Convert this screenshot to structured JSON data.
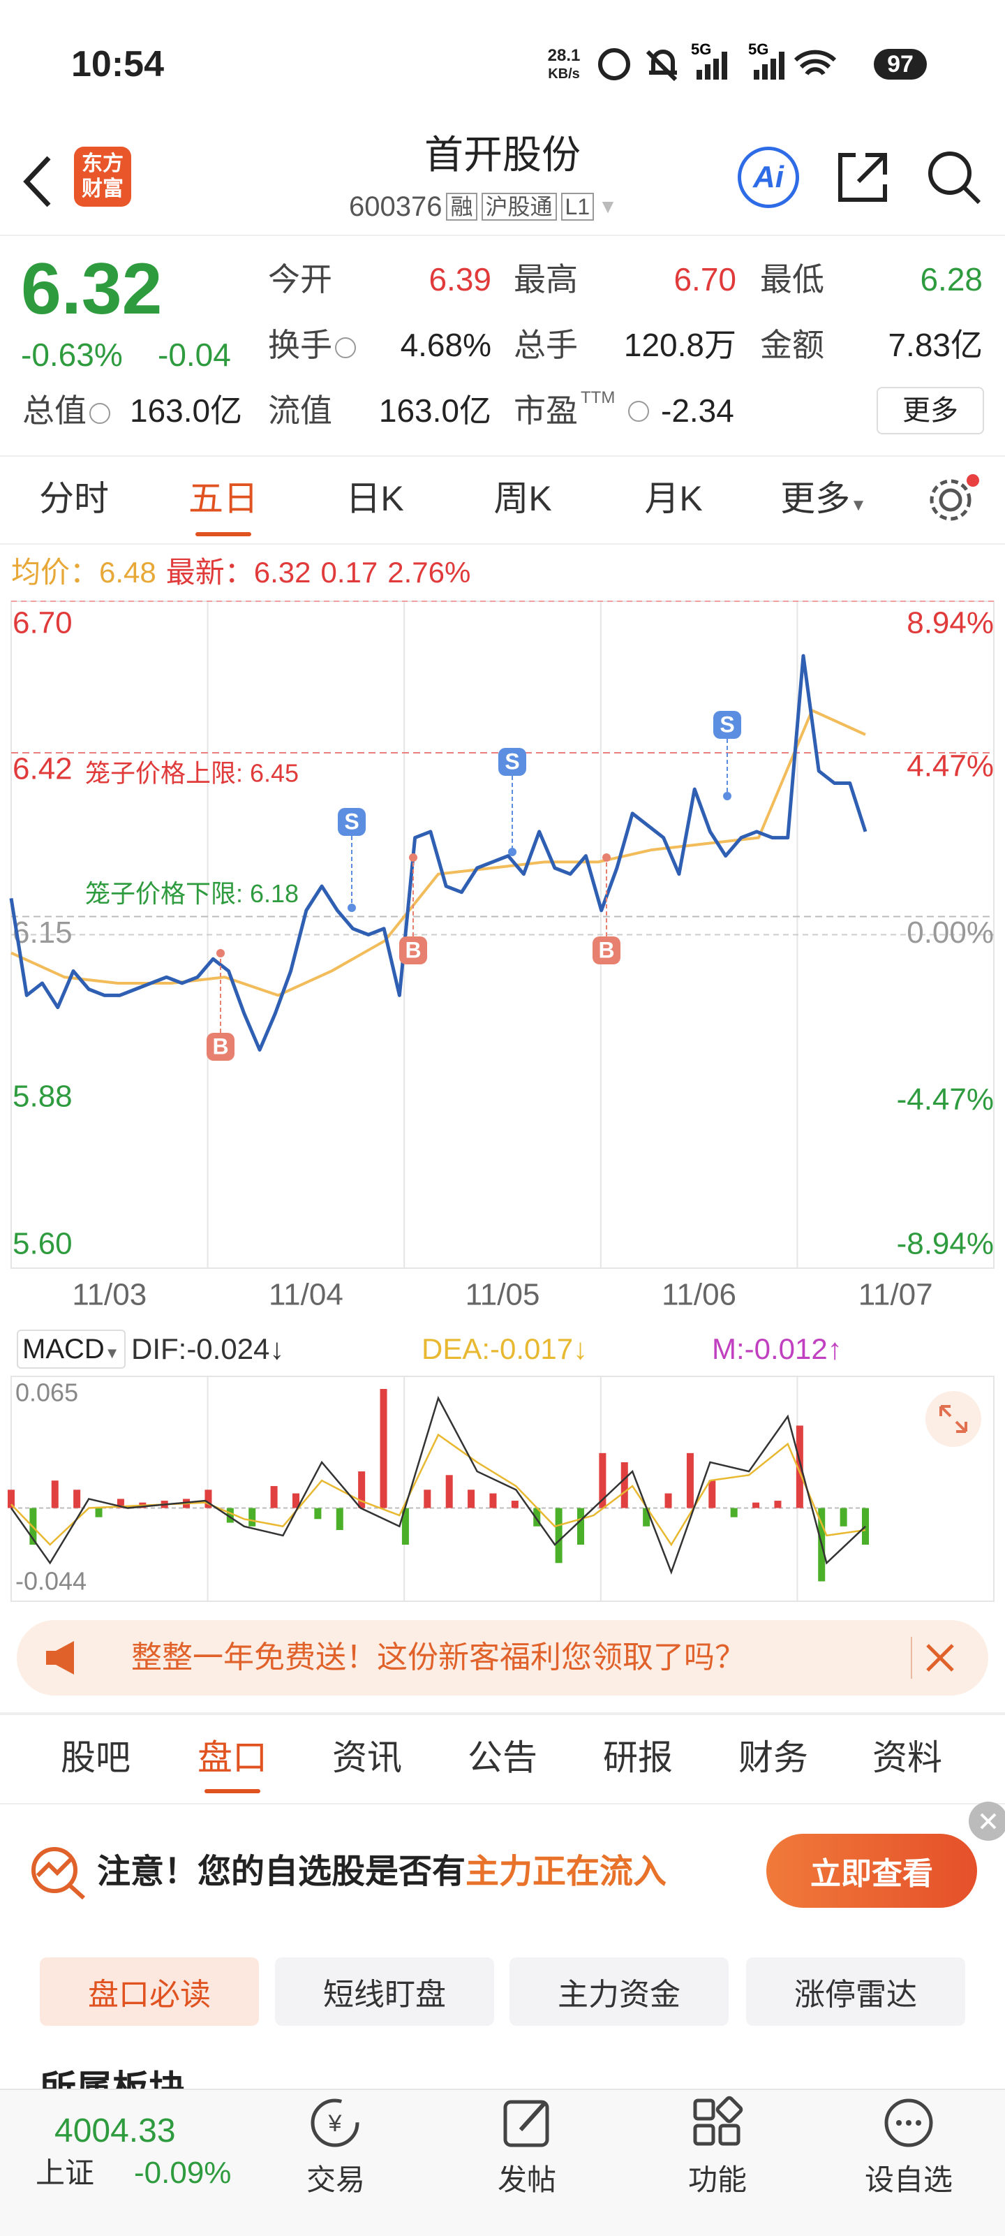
{
  "status": {
    "time": "10:54",
    "speed": "28.1",
    "speed_unit": "KB/s",
    "battery": "97"
  },
  "header": {
    "logo": [
      "东方",
      "财富"
    ],
    "title": "首开股份",
    "code": "600376",
    "tags": [
      "融",
      "沪股通",
      "L1"
    ],
    "ai": "Ai"
  },
  "quote": {
    "price": "6.32",
    "change_pct": "-0.63%",
    "change": "-0.04",
    "fields": [
      {
        "label": "今开",
        "value": "6.39"
      },
      {
        "label": "最高",
        "value": "6.70"
      },
      {
        "label": "最低",
        "value": "6.28"
      },
      {
        "label": "换手",
        "value": "4.68%"
      },
      {
        "label": "总手",
        "value": "120.8万"
      },
      {
        "label": "金额",
        "value": "7.83亿"
      },
      {
        "label": "总值",
        "value": "163.0亿"
      },
      {
        "label": "流值",
        "value": "163.0亿"
      },
      {
        "label": "市盈",
        "value": "-2.34"
      }
    ],
    "ttm": "TTM",
    "more": "更多"
  },
  "tabs": [
    "分时",
    "五日",
    "日K",
    "周K",
    "月K",
    "更多"
  ],
  "chart": {
    "legend": {
      "avg_label": "均价：",
      "avg": "6.48",
      "last_label": "最新：",
      "last": "6.32",
      "change": "0.17",
      "change_pct": "2.76%"
    },
    "ylim": [
      5.6,
      6.7
    ],
    "yticks": [
      {
        "value": 6.7,
        "label": "6.70"
      },
      6.42,
      6.15,
      5.88,
      {
        "value": 5.6,
        "label": "5.60"
      }
    ],
    "y2lim": [
      -8.94,
      8.94
    ],
    "y2ticks": [
      {
        "value": 8.94,
        "label": "8.94%"
      },
      {
        "value": 4.47,
        "label": "4.47%"
      },
      {
        "value": 0,
        "label": "0.00%"
      },
      {
        "value": -4.47,
        "label": "-4.47%"
      },
      {
        "value": -8.94,
        "label": "-8.94%"
      }
    ],
    "dates": [
      "11/03",
      "11/04",
      "11/05",
      "11/06",
      "11/07"
    ],
    "upper_label": "笼子价格上限: 6.45",
    "upper": 6.45,
    "lower_label": "笼子价格下限: 6.18",
    "lower": 6.18,
    "price": [
      6.21,
      6.05,
      6.07,
      6.03,
      6.09,
      6.06,
      6.05,
      6.05,
      6.06,
      6.07,
      6.08,
      6.07,
      6.08,
      6.11,
      6.09,
      6.02,
      5.96,
      6.02,
      6.09,
      6.19,
      6.23,
      6.19,
      6.16,
      6.15,
      6.16,
      6.05,
      6.31,
      6.32,
      6.23,
      6.22,
      6.26,
      6.27,
      6.28,
      6.25,
      6.32,
      6.26,
      6.25,
      6.28,
      6.19,
      6.26,
      6.35,
      6.33,
      6.31,
      6.25,
      6.39,
      6.32,
      6.28,
      6.31,
      6.32,
      6.31,
      6.31,
      6.61,
      6.42,
      6.4,
      6.4,
      6.32
    ],
    "avg": [
      6.12,
      6.08,
      6.07,
      6.07,
      6.08,
      6.05,
      6.09,
      6.14,
      6.25,
      6.26,
      6.27,
      6.27,
      6.29,
      6.3,
      6.31,
      6.52,
      6.48
    ],
    "markers": [
      "S",
      "S",
      "S",
      "B",
      "B",
      "B"
    ]
  },
  "macd": {
    "title": "MACD",
    "dif": "DIF:-0.024↓",
    "dea": "DEA:-0.017↓",
    "m": "M:-0.012↑",
    "ylim": [
      -0.044,
      0.065
    ],
    "yticks": [
      0.065,
      -0.044
    ],
    "hist": [
      0.01,
      -0.02,
      0.015,
      0.01,
      -0.005,
      0.005,
      0.003,
      0.004,
      0.005,
      0.01,
      -0.008,
      -0.01,
      0.012,
      0.008,
      -0.006,
      -0.012,
      0.02,
      0.065,
      -0.02,
      0.01,
      0.018,
      0.01,
      0.008,
      0.004,
      -0.01,
      -0.03,
      -0.02,
      0.03,
      0.025,
      -0.01,
      0.008,
      0.03,
      0.015,
      -0.005,
      0.003,
      0.004,
      0.045,
      -0.04,
      -0.01,
      -0.02
    ],
    "dif_line": [
      0.0,
      -0.03,
      0.005,
      0.0,
      0.002,
      0.004,
      -0.01,
      -0.015,
      0.025,
      0.0,
      -0.01,
      0.06,
      0.02,
      0.01,
      -0.02,
      0.0,
      0.02,
      -0.035,
      0.025,
      0.02,
      0.05,
      -0.03,
      -0.01
    ],
    "dea_line": [
      0.002,
      -0.02,
      0.0,
      0.001,
      0.002,
      0.003,
      -0.006,
      -0.01,
      0.015,
      0.004,
      -0.004,
      0.04,
      0.025,
      0.012,
      -0.01,
      -0.004,
      0.012,
      -0.02,
      0.015,
      0.018,
      0.035,
      -0.015,
      -0.012
    ]
  },
  "banner": "整整一年免费送！这份新客福利您领取了吗？",
  "section_tabs": [
    "股吧",
    "盘口",
    "资讯",
    "公告",
    "研报",
    "财务",
    "资料"
  ],
  "promo": {
    "text1": "注意！您的自选股是否有",
    "text2": "主力正在流入",
    "button": "立即查看"
  },
  "sub_tabs": [
    "盘口必读",
    "短线盯盘",
    "主力资金",
    "涨停雷达"
  ],
  "partial": "所属板块",
  "nav": {
    "index_value": "4004.33",
    "index_name": "上证",
    "index_change": "-0.09%",
    "items": [
      "交易",
      "发帖",
      "功能",
      "设自选"
    ]
  }
}
